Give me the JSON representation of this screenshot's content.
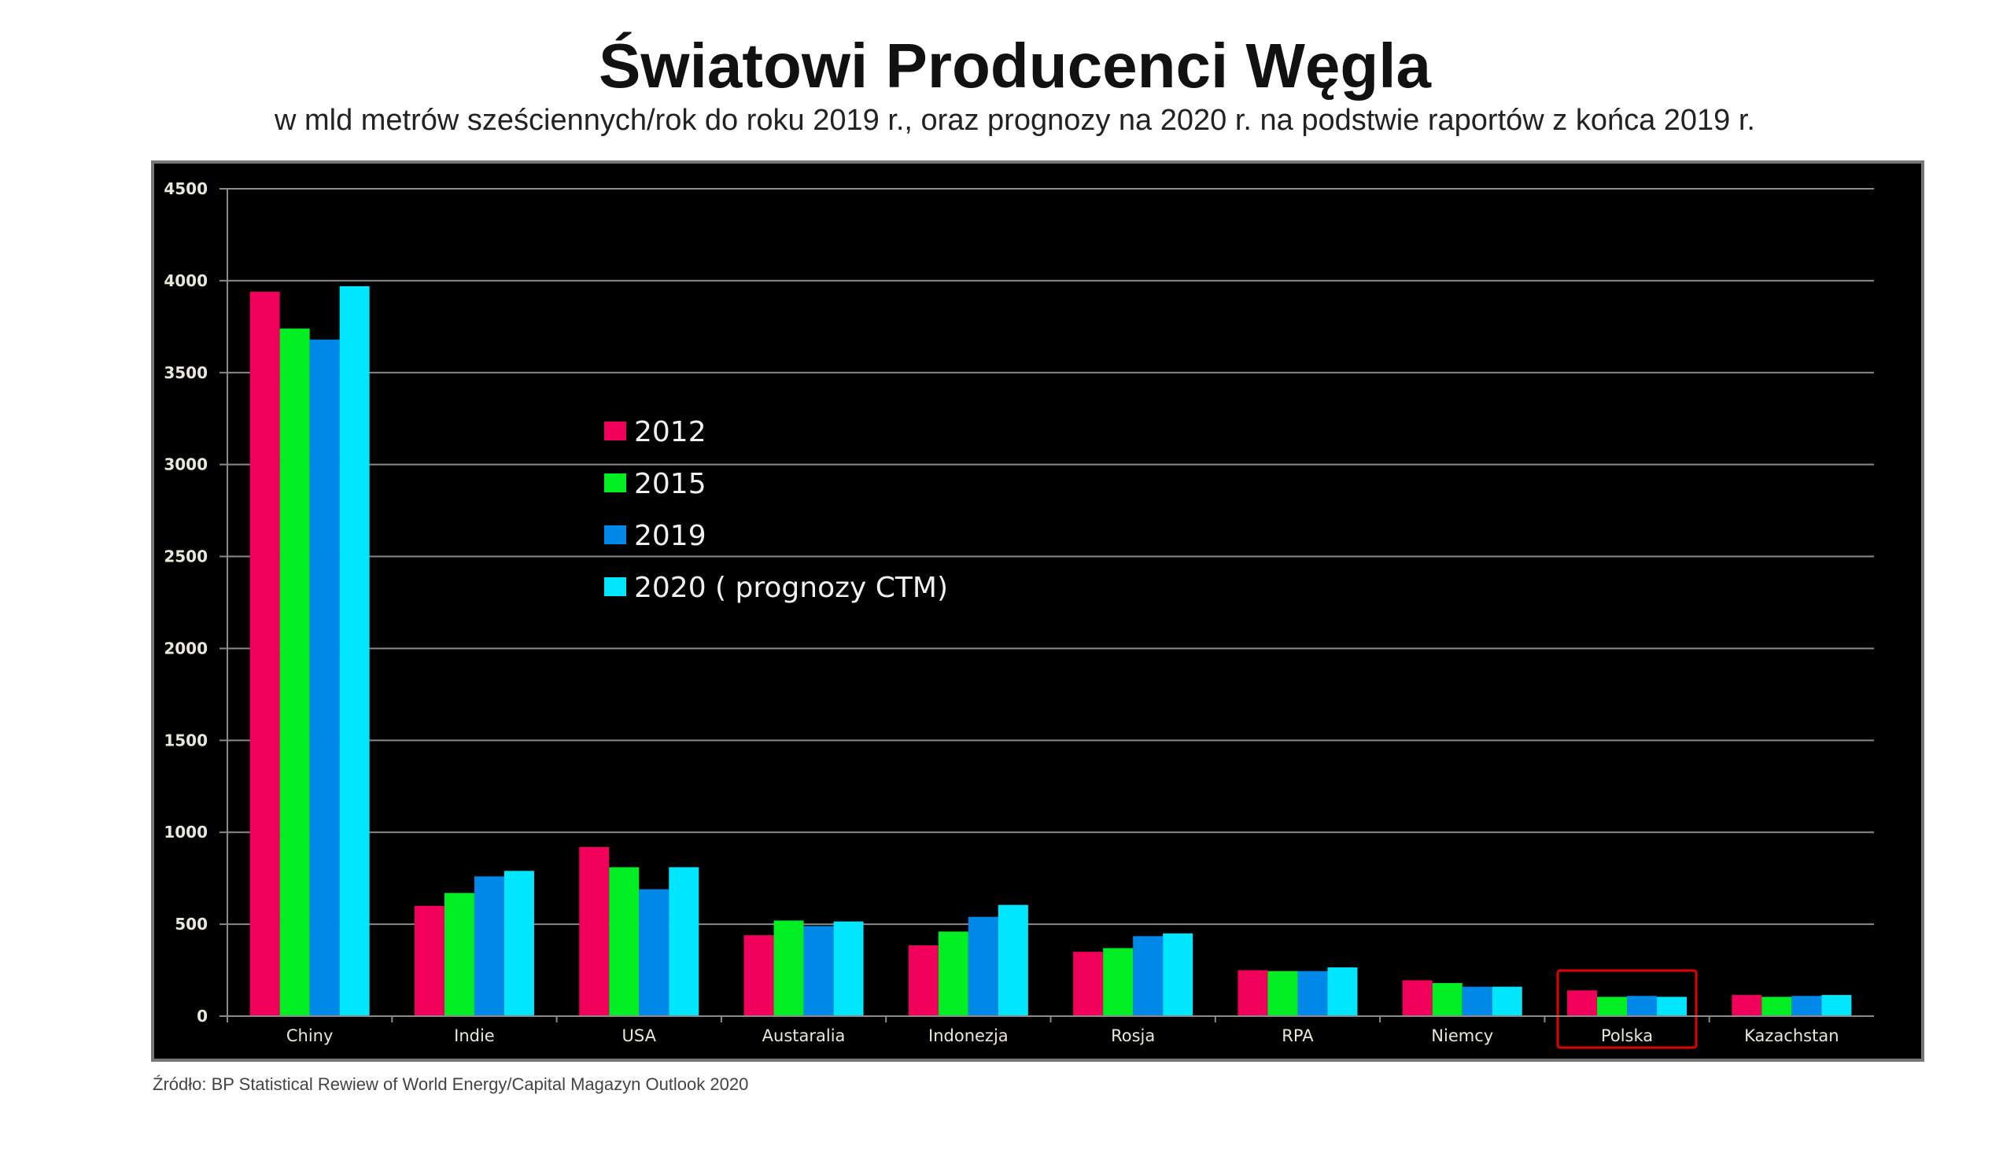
{
  "chart_data": {
    "type": "bar",
    "title": "Światowi Producenci Węgla",
    "subtitle": "w mld metrów sześciennych/rok  do roku 2019 r., oraz prognozy na 2020 r. na podstwie raportów z końca 2019 r.",
    "source": "Źródło: BP Statistical Rewiew of World Energy/Capital Magazyn Outlook 2020",
    "xlabel": "",
    "ylabel": "",
    "ylim": [
      0,
      4500
    ],
    "yticks": [
      0,
      500,
      1000,
      1500,
      2000,
      2500,
      3000,
      3500,
      4000,
      4500
    ],
    "grid": true,
    "legend_position": "upper-center",
    "highlighted_category": "Polska",
    "highlight_color": "#e00000",
    "categories": [
      "Chiny",
      "Indie",
      "USA",
      "Austaralia",
      "Indonezja",
      "Rosja",
      "RPA",
      "Niemcy",
      "Polska",
      "Kazachstan"
    ],
    "series": [
      {
        "name": "2012",
        "color": "#f0005a",
        "values": [
          3940,
          600,
          920,
          440,
          385,
          350,
          250,
          195,
          140,
          115
        ]
      },
      {
        "name": "2015",
        "color": "#00ee22",
        "values": [
          3740,
          670,
          810,
          520,
          460,
          370,
          245,
          180,
          105,
          105
        ]
      },
      {
        "name": "2019",
        "color": "#0088e8",
        "values": [
          3680,
          760,
          690,
          490,
          540,
          435,
          245,
          160,
          110,
          110
        ]
      },
      {
        "name": "2020 ( prognozy CTM)",
        "color": "#00e6ff",
        "values": [
          3970,
          790,
          810,
          515,
          605,
          450,
          265,
          160,
          105,
          115
        ]
      }
    ]
  }
}
